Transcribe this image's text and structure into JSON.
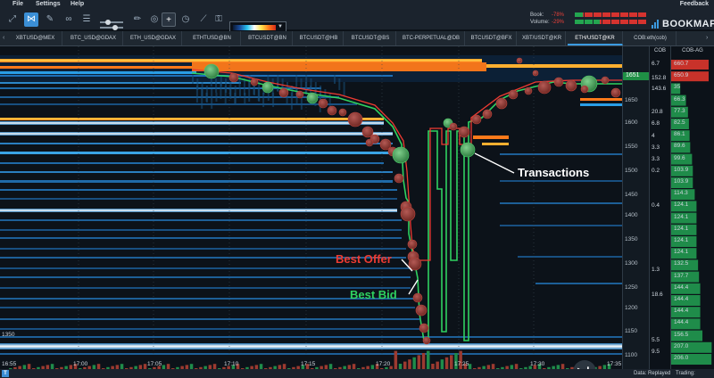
{
  "menu": {
    "items": [
      "File",
      "Settings",
      "Help"
    ],
    "feedback": "Feedback"
  },
  "toolbar": {
    "book_label": "Book:",
    "book_pct": "-78%",
    "volume_label": "Volume:",
    "volume_pct": "-29%",
    "book_buy_fraction": 0.11,
    "volume_buy_fraction": 0.35,
    "logo": "BOOKMAP",
    "icons": [
      "zoom-fit-icon",
      "link-icon",
      "brush-icon",
      "link-chain-icon",
      "sliders-icon",
      "pencil-icon",
      "target-icon",
      "crosshair-icon",
      "timer-icon",
      "trend-icon",
      "lock-icon",
      "colormap-dropdown"
    ]
  },
  "tabs": {
    "items": [
      "XBTUSD@MEX",
      "BTC_USD@GDAX",
      "ETH_USD@GDAX",
      "ETHTUSD@BN",
      "BTCUSDT@BN",
      "BTCUSDT@HB",
      "BTCUSDT@BS",
      "BTC-PERPETUAL@DB",
      "BTCUSDT@BFX",
      "XBT/USDT@KR",
      "ETH/USDT@KR",
      "COB:eth(cob)"
    ],
    "selected": "ETH/USDT@KR"
  },
  "chart": {
    "time_labels": [
      "16:55",
      "17:00",
      "17:05",
      "17:10",
      "17:15",
      "17:20",
      "17:25",
      "17:30",
      "17:35"
    ],
    "left_price_label": "1350",
    "annotations": {
      "best_offer": "Best Offer",
      "best_bid": "Best Bid",
      "transactions": "Transactions"
    },
    "colors": {
      "best_offer": "#ee3b32",
      "best_bid": "#2fd160",
      "transactions": "#ffffff",
      "ask": "#ff7a1a",
      "bid": "#29c4ee"
    }
  },
  "price_axis": {
    "labels": [
      "1650",
      "1600",
      "1550",
      "1500",
      "1450",
      "1400",
      "1350",
      "1300",
      "1250",
      "1200",
      "1150",
      "1100"
    ],
    "current_price": "1651",
    "current_price_color": "#3bd16a"
  },
  "cob": {
    "header": "COB",
    "values": [
      "6.7",
      "152.8",
      "143.6",
      "20.8",
      "6.8",
      "4",
      "3.3",
      "3.3",
      "0.2",
      "0.4",
      "1.3",
      "18.6",
      "5.5",
      "9.5"
    ]
  },
  "cobag": {
    "header": "COB-AG",
    "values": [
      "660.7",
      "650.9",
      "35",
      "66.3",
      "77.3",
      "82.5",
      "86.1",
      "89.6",
      "99.6",
      "103.9",
      "103.9",
      "114.3",
      "124.1",
      "124.1",
      "124.1",
      "124.1",
      "124.1",
      "132.5",
      "137.7",
      "144.4",
      "144.4",
      "144.4",
      "144.4",
      "156.5",
      "207.0",
      "206.0"
    ]
  },
  "status": {
    "data": "Data: Replayed",
    "trading": "Trading: Simulated"
  }
}
